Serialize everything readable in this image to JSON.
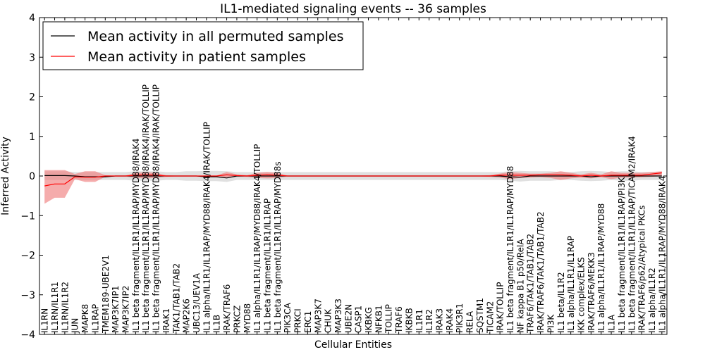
{
  "chart_data": {
    "type": "line",
    "title": "IL1-mediated signaling events -- 36 samples",
    "xlabel": "Cellular Entities",
    "ylabel": "Inferred Activity",
    "ylim": [
      -4,
      4
    ],
    "yticks": [
      -4,
      -3,
      -2,
      -1,
      0,
      1,
      2,
      3,
      4
    ],
    "grid": false,
    "legend_position": "top-left",
    "categories": [
      "IL1RN",
      "IL1RN/IL1R1",
      "IL1RN/IL1R2",
      "JUN",
      "MAPK8",
      "IL1RAP",
      "TMEM189-UBE2V1",
      "MAP3K7IP1",
      "MAP3K7IP2",
      "IL1 beta fragment/IL1R1/IL1RAP/MYD88/IRAK4",
      "IL1 beta fragment/IL1R1/IL1RAP/MYD88/IRAK4/IRAK/TOLLIP",
      "IL1 beta fragment/IL1R1/IL1RAP/MYD88/IRAK4/IRAK/TOLLIP",
      "IRAK1",
      "TAK1/TAB1/TAB2",
      "MAP2K6",
      "UBC13/UEV1A",
      "IL1 alpha/IL1R1/IL1RAP/MYD88/IRAK4/IRAK/TOLLIP",
      "IL1B",
      "IRAK/TRAF6",
      "PRKCZ",
      "MYD88",
      "IL1 alpha/IL1R1/IL1RAP/MYD88/IRAK4/TOLLIP",
      "IL1 beta fragment/IL1R1/IL1RAP",
      "IL1 beta fragment/IL1R1/IL1RAP/MYD88s",
      "PIK3CA",
      "PRKCI",
      "ERC1",
      "MAP3K7",
      "CHUK",
      "MAP3K3",
      "UBE2N",
      "CASP1",
      "IKBKG",
      "NFKB1",
      "TOLLIP",
      "TRAF6",
      "IKBKB",
      "IL1R1",
      "IL1R2",
      "IRAK3",
      "IRAK4",
      "PIK3R1",
      "RELA",
      "SQSTM1",
      "TICAM2",
      "IRAK/TOLLIP",
      "IL1 beta fragment/IL1R1/IL1RAP/MYD88",
      "NF kappa B1 p50/RelA",
      "TRAF6/TAK1/TAB1/TAB2",
      "IRAK/TRAF6/TAK1/TAB1/TAB2",
      "PI3K",
      "IL1 beta/IL1R2",
      "IL1 alpha/IL1R1/IL1RAP",
      "IKK complex/ELKS",
      "IRAK/TRAF6/MEKK3",
      "IL1 alpha/IL1R1/IL1RAP/MYD88",
      "IL1A",
      "IL1 beta fragment/IL1R1/IL1RAP/PI3K",
      "IL1 beta fragment/IL1R1/IL1RAP/TICAM2/IRAK4",
      "IRAK/TRAF6/p62/Atypical PKCs",
      "IL1 alpha/IL1R2",
      "IL1 alpha/IL1R1/IL1RAP/MYD88/IRAK4"
    ],
    "series": [
      {
        "name": "Mean activity in all permuted samples",
        "color": "#000000",
        "values": [
          0.01,
          0.01,
          0.01,
          0.0,
          -0.02,
          -0.02,
          -0.02,
          0.0,
          0.0,
          0.0,
          0.0,
          0.0,
          0.0,
          0.0,
          0.0,
          0.0,
          -0.02,
          -0.02,
          -0.05,
          0.0,
          0.0,
          0.0,
          0.0,
          0.0,
          0.0,
          0.0,
          0.0,
          0.0,
          0.0,
          0.0,
          0.0,
          0.0,
          0.0,
          0.0,
          0.0,
          0.0,
          0.0,
          0.0,
          0.0,
          0.0,
          0.0,
          0.0,
          0.0,
          0.0,
          0.0,
          0.0,
          -0.02,
          -0.03,
          0.0,
          0.0,
          0.0,
          0.0,
          0.0,
          0.0,
          -0.02,
          0.0,
          0.0,
          0.0,
          0.0,
          0.0,
          0.0,
          0.0
        ],
        "band": {
          "color": "#cccccc",
          "lower": [
            -0.1,
            -0.1,
            -0.1,
            -0.1,
            -0.1,
            -0.1,
            -0.1,
            -0.1,
            -0.1,
            -0.12,
            -0.12,
            -0.12,
            -0.1,
            -0.1,
            -0.12,
            -0.12,
            -0.13,
            -0.13,
            -0.15,
            -0.1,
            -0.1,
            -0.1,
            -0.1,
            -0.1,
            -0.1,
            -0.1,
            -0.1,
            -0.1,
            -0.1,
            -0.1,
            -0.1,
            -0.1,
            -0.1,
            -0.1,
            -0.1,
            -0.1,
            -0.1,
            -0.1,
            -0.1,
            -0.1,
            -0.1,
            -0.1,
            -0.1,
            -0.1,
            -0.1,
            -0.1,
            -0.12,
            -0.14,
            -0.12,
            -0.12,
            -0.12,
            -0.1,
            -0.1,
            -0.12,
            -0.13,
            -0.12,
            -0.1,
            -0.12,
            -0.12,
            -0.1,
            -0.1,
            -0.1
          ],
          "upper": [
            0.12,
            0.12,
            0.12,
            0.1,
            0.1,
            0.1,
            0.1,
            0.1,
            0.1,
            0.12,
            0.12,
            0.12,
            0.1,
            0.1,
            0.12,
            0.12,
            0.13,
            0.13,
            0.12,
            0.1,
            0.1,
            0.1,
            0.1,
            0.1,
            0.1,
            0.1,
            0.1,
            0.1,
            0.1,
            0.1,
            0.1,
            0.1,
            0.1,
            0.1,
            0.1,
            0.1,
            0.1,
            0.1,
            0.1,
            0.1,
            0.1,
            0.1,
            0.1,
            0.1,
            0.1,
            0.1,
            0.12,
            0.13,
            0.12,
            0.12,
            0.12,
            0.1,
            0.1,
            0.12,
            0.13,
            0.12,
            0.1,
            0.12,
            0.12,
            0.1,
            0.1,
            0.1
          ]
        }
      },
      {
        "name": "Mean activity in patient samples",
        "color": "#ff0000",
        "values": [
          -0.25,
          -0.2,
          -0.2,
          -0.02,
          -0.03,
          -0.03,
          0.0,
          0.0,
          0.0,
          0.02,
          0.03,
          0.02,
          0.0,
          0.0,
          0.0,
          0.0,
          0.0,
          0.0,
          0.03,
          0.01,
          0.0,
          0.02,
          0.03,
          0.02,
          0.0,
          0.0,
          0.0,
          0.0,
          0.0,
          0.0,
          0.0,
          0.0,
          0.0,
          0.0,
          0.0,
          0.0,
          0.0,
          0.0,
          0.0,
          0.0,
          0.0,
          0.0,
          0.0,
          0.0,
          0.0,
          0.02,
          0.02,
          0.02,
          0.02,
          0.03,
          0.03,
          0.03,
          0.02,
          0.0,
          0.02,
          0.0,
          0.02,
          0.02,
          0.02,
          0.02,
          0.05,
          0.08
        ],
        "band": {
          "color": "#f08080",
          "lower": [
            -0.7,
            -0.55,
            -0.55,
            -0.08,
            -0.15,
            -0.15,
            -0.02,
            -0.01,
            -0.01,
            -0.05,
            -0.06,
            -0.05,
            -0.02,
            -0.01,
            -0.01,
            -0.01,
            -0.01,
            -0.01,
            -0.05,
            -0.02,
            -0.02,
            -0.05,
            -0.06,
            -0.05,
            -0.01,
            -0.01,
            -0.01,
            -0.01,
            -0.01,
            -0.01,
            -0.01,
            -0.01,
            -0.01,
            -0.01,
            -0.01,
            -0.01,
            -0.01,
            -0.01,
            -0.01,
            -0.01,
            -0.01,
            -0.01,
            -0.01,
            -0.01,
            -0.02,
            -0.04,
            -0.08,
            -0.05,
            -0.04,
            -0.03,
            -0.05,
            -0.1,
            -0.06,
            -0.04,
            -0.06,
            -0.03,
            -0.08,
            -0.04,
            -0.04,
            -0.03,
            -0.02,
            0.0
          ],
          "upper": [
            0.15,
            0.15,
            0.15,
            0.05,
            0.12,
            0.12,
            0.02,
            0.01,
            0.01,
            0.08,
            0.1,
            0.08,
            0.02,
            0.01,
            0.01,
            0.01,
            0.01,
            0.01,
            0.1,
            0.04,
            0.02,
            0.08,
            0.1,
            0.08,
            0.01,
            0.01,
            0.01,
            0.01,
            0.01,
            0.01,
            0.01,
            0.01,
            0.01,
            0.01,
            0.01,
            0.01,
            0.01,
            0.01,
            0.01,
            0.01,
            0.01,
            0.01,
            0.01,
            0.01,
            0.02,
            0.06,
            0.1,
            0.08,
            0.06,
            0.06,
            0.08,
            0.12,
            0.08,
            0.04,
            0.08,
            0.04,
            0.12,
            0.08,
            0.08,
            0.08,
            0.1,
            0.12
          ]
        }
      }
    ]
  }
}
